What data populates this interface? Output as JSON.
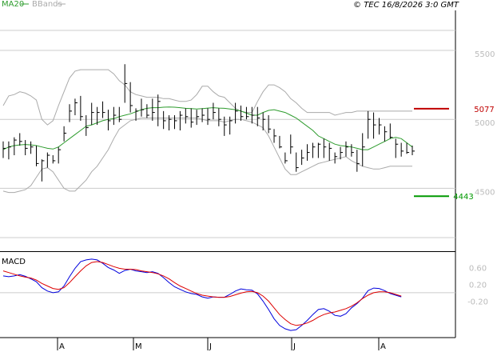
{
  "header": {
    "indicators": [
      {
        "label": "MA20",
        "color": "#2e9c2e"
      },
      {
        "label": "BBands",
        "color": "#aaaaaa"
      }
    ],
    "copyright": "© TEC 16/8/2026 3:0 GMT"
  },
  "chart_data": [
    {
      "type": "ohlc",
      "panel": "price",
      "y_ticks": [
        {
          "value": 5500,
          "label": "5500"
        },
        {
          "value": 5000,
          "label": "5000"
        },
        {
          "value": 4500,
          "label": "4500"
        }
      ],
      "ylim": [
        4050,
        5790
      ],
      "x_ticks": [
        "A",
        "M",
        "J",
        "J",
        "A"
      ],
      "levels": [
        {
          "value": 5077,
          "label": "5077",
          "color": "#c00000"
        },
        {
          "value": 4443,
          "label": "4443",
          "color": "#009900"
        }
      ],
      "series": [
        {
          "name": "MA20",
          "color": "#2e9c2e",
          "values": [
            4780,
            4800,
            4810,
            4815,
            4818,
            4815,
            4810,
            4800,
            4790,
            4785,
            4800,
            4830,
            4860,
            4890,
            4920,
            4950,
            4960,
            4975,
            4990,
            5000,
            5005,
            5020,
            5030,
            5040,
            5055,
            5070,
            5080,
            5085,
            5085,
            5088,
            5090,
            5088,
            5085,
            5080,
            5078,
            5075,
            5078,
            5082,
            5085,
            5082,
            5080,
            5075,
            5070,
            5060,
            5045,
            5030,
            5030,
            5050,
            5065,
            5070,
            5060,
            5050,
            5030,
            5010,
            4980,
            4950,
            4920,
            4880,
            4860,
            4840,
            4820,
            4810,
            4805,
            4800,
            4790,
            4780,
            4780,
            4800,
            4820,
            4840,
            4860,
            4870,
            4860,
            4830,
            4800
          ]
        },
        {
          "name": "BBands",
          "color": "#aaaaaa",
          "upper": [
            5100,
            5170,
            5180,
            5200,
            5190,
            5170,
            5140,
            5000,
            4960,
            4990,
            5100,
            5200,
            5300,
            5350,
            5360,
            5360,
            5360,
            5360,
            5360,
            5360,
            5330,
            5280,
            5250,
            5200,
            5180,
            5170,
            5160,
            5160,
            5160,
            5150,
            5150,
            5140,
            5130,
            5130,
            5140,
            5180,
            5240,
            5240,
            5200,
            5170,
            5160,
            5120,
            5080,
            5060,
            5050,
            5050,
            5130,
            5200,
            5250,
            5250,
            5230,
            5200,
            5150,
            5120,
            5080,
            5050,
            5050,
            5050,
            5050,
            5050,
            5030,
            5040,
            5050,
            5050,
            5060,
            5060,
            5060,
            5060,
            5060,
            5060,
            5060,
            5060,
            5060,
            5060,
            5060
          ],
          "lower": [
            4480,
            4470,
            4470,
            4480,
            4490,
            4520,
            4580,
            4640,
            4650,
            4620,
            4560,
            4500,
            4480,
            4480,
            4520,
            4560,
            4620,
            4660,
            4720,
            4780,
            4860,
            4930,
            4960,
            4990,
            5000,
            5010,
            5010,
            5010,
            5010,
            5010,
            5010,
            5010,
            5010,
            5010,
            5010,
            5010,
            5000,
            4990,
            4990,
            4990,
            4980,
            4990,
            5000,
            5000,
            4990,
            4980,
            4960,
            4940,
            4880,
            4800,
            4720,
            4640,
            4600,
            4600,
            4620,
            4640,
            4660,
            4680,
            4690,
            4700,
            4710,
            4720,
            4730,
            4700,
            4680,
            4660,
            4650,
            4640,
            4640,
            4650,
            4660,
            4660,
            4660,
            4660,
            4660
          ]
        },
        {
          "name": "OHLC",
          "high": [
            4840,
            4840,
            4870,
            4900,
            4850,
            4840,
            4810,
            4710,
            4760,
            4740,
            4800,
            4950,
            5110,
            5150,
            5170,
            5030,
            5120,
            5090,
            5130,
            5070,
            5090,
            5090,
            5400,
            5270,
            5080,
            5150,
            5110,
            5150,
            5180,
            5060,
            5030,
            5030,
            5060,
            5080,
            5080,
            5070,
            5080,
            5080,
            5120,
            5080,
            5020,
            5020,
            5120,
            5100,
            5090,
            5090,
            5090,
            5050,
            5030,
            4930,
            4880,
            4760,
            4890,
            4760,
            4780,
            4820,
            4830,
            4830,
            4860,
            4830,
            4760,
            4800,
            4840,
            4820,
            4780,
            4900,
            5060,
            5050,
            5010,
            4950,
            4970,
            4860,
            4830,
            4830,
            4810
          ],
          "low": [
            4720,
            4710,
            4740,
            4810,
            4740,
            4750,
            4660,
            4550,
            4650,
            4680,
            4680,
            4840,
            4980,
            5030,
            4990,
            4880,
            4960,
            4960,
            5010,
            4920,
            4960,
            4980,
            5120,
            5050,
            4990,
            5020,
            5010,
            4990,
            4950,
            4930,
            4920,
            4930,
            4920,
            4970,
            4940,
            4960,
            4980,
            4960,
            5000,
            4950,
            4880,
            4890,
            4970,
            4990,
            5000,
            4970,
            4950,
            4920,
            4900,
            4830,
            4790,
            4680,
            4750,
            4620,
            4670,
            4700,
            4720,
            4720,
            4720,
            4700,
            4680,
            4710,
            4730,
            4730,
            4620,
            4660,
            4860,
            4860,
            4890,
            4840,
            4860,
            4720,
            4730,
            4750,
            4740
          ],
          "close": [
            4790,
            4800,
            4850,
            4840,
            4790,
            4800,
            4680,
            4700,
            4740,
            4700,
            4780,
            4900,
            5060,
            5120,
            5020,
            4940,
            5050,
            5050,
            5050,
            4990,
            5030,
            5000,
            5260,
            5100,
            5060,
            5070,
            5030,
            5050,
            5130,
            4990,
            5000,
            4990,
            5030,
            5020,
            4980,
            5020,
            5030,
            5000,
            5050,
            5000,
            4960,
            4990,
            5060,
            5020,
            5020,
            5030,
            5010,
            5000,
            4930,
            4880,
            4800,
            4700,
            4800,
            4650,
            4720,
            4760,
            4800,
            4820,
            4800,
            4790,
            4730,
            4760,
            4800,
            4760,
            4680,
            4800,
            5000,
            4960,
            4960,
            4910,
            4870,
            4820,
            4770,
            4760,
            4770
          ]
        }
      ]
    },
    {
      "type": "line",
      "panel": "macd",
      "title": "MACD",
      "y_ticks": [
        {
          "value": 0.6,
          "label": "0.60"
        },
        {
          "value": 0.2,
          "label": "0.20"
        },
        {
          "value": -0.2,
          "label": "-0.20"
        }
      ],
      "ylim": [
        -1.05,
        0.95
      ],
      "series": [
        {
          "name": "MACD",
          "color": "#0000dd",
          "values": [
            0.4,
            0.38,
            0.4,
            0.43,
            0.39,
            0.33,
            0.26,
            0.12,
            0.04,
            0.0,
            0.02,
            0.16,
            0.38,
            0.58,
            0.74,
            0.78,
            0.8,
            0.78,
            0.7,
            0.6,
            0.54,
            0.46,
            0.53,
            0.56,
            0.52,
            0.5,
            0.48,
            0.5,
            0.46,
            0.36,
            0.24,
            0.14,
            0.08,
            0.02,
            -0.02,
            -0.04,
            -0.1,
            -0.13,
            -0.1,
            -0.11,
            -0.11,
            -0.04,
            0.04,
            0.09,
            0.07,
            0.06,
            -0.03,
            -0.2,
            -0.4,
            -0.62,
            -0.78,
            -0.86,
            -0.9,
            -0.88,
            -0.78,
            -0.66,
            -0.52,
            -0.4,
            -0.38,
            -0.44,
            -0.54,
            -0.56,
            -0.5,
            -0.36,
            -0.26,
            -0.13,
            0.05,
            0.11,
            0.1,
            0.05,
            -0.02,
            -0.06,
            -0.1
          ]
        },
        {
          "name": "Signal",
          "color": "#dd0000",
          "values": [
            0.52,
            0.48,
            0.44,
            0.4,
            0.37,
            0.35,
            0.3,
            0.22,
            0.16,
            0.1,
            0.08,
            0.12,
            0.24,
            0.38,
            0.52,
            0.64,
            0.72,
            0.74,
            0.72,
            0.67,
            0.62,
            0.58,
            0.56,
            0.56,
            0.55,
            0.52,
            0.5,
            0.48,
            0.45,
            0.4,
            0.33,
            0.24,
            0.16,
            0.1,
            0.04,
            -0.02,
            -0.06,
            -0.08,
            -0.1,
            -0.11,
            -0.11,
            -0.09,
            -0.05,
            -0.01,
            0.02,
            0.03,
            0.0,
            -0.08,
            -0.2,
            -0.36,
            -0.52,
            -0.64,
            -0.74,
            -0.78,
            -0.76,
            -0.72,
            -0.66,
            -0.58,
            -0.52,
            -0.48,
            -0.46,
            -0.42,
            -0.38,
            -0.32,
            -0.24,
            -0.14,
            -0.06,
            0.0,
            0.02,
            0.02,
            0.0,
            -0.04,
            -0.08
          ]
        }
      ]
    }
  ]
}
